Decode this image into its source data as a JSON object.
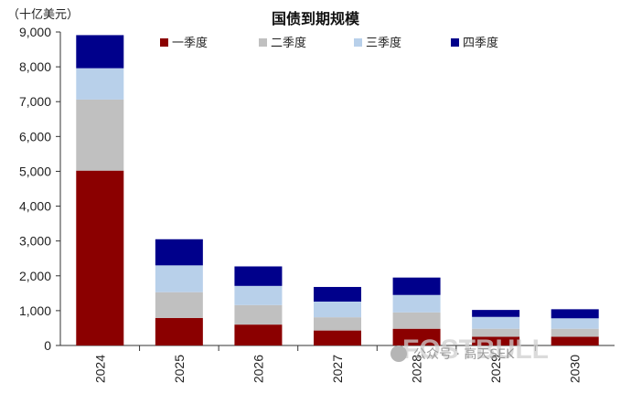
{
  "chart_data": {
    "type": "bar",
    "stacked": true,
    "title": "国债到期规模",
    "unit_label": "（十亿美元）",
    "categories": [
      "2024",
      "2025",
      "2026",
      "2027",
      "2028",
      "2029",
      "2030"
    ],
    "series": [
      {
        "name": "一季度",
        "color": "#8b0000",
        "values": [
          5020,
          790,
          600,
          430,
          480,
          250,
          250
        ]
      },
      {
        "name": "二季度",
        "color": "#c0c0c0",
        "values": [
          2040,
          740,
          560,
          380,
          470,
          230,
          230
        ]
      },
      {
        "name": "三季度",
        "color": "#b8d0ea",
        "values": [
          900,
          770,
          550,
          450,
          500,
          340,
          300
        ]
      },
      {
        "name": "四季度",
        "color": "#00008b",
        "values": [
          950,
          750,
          560,
          420,
          500,
          200,
          260
        ]
      }
    ],
    "ylim": [
      0,
      9000
    ],
    "yticks": [
      "0",
      "1,000",
      "2,000",
      "3,000",
      "4,000",
      "5,000",
      "6,000",
      "7,000",
      "8,000",
      "9,000"
    ],
    "grid": false,
    "legend_position": "top"
  },
  "watermark": {
    "text": "公众号 · 高天SEK",
    "logo_text": "FOSTBULL"
  }
}
